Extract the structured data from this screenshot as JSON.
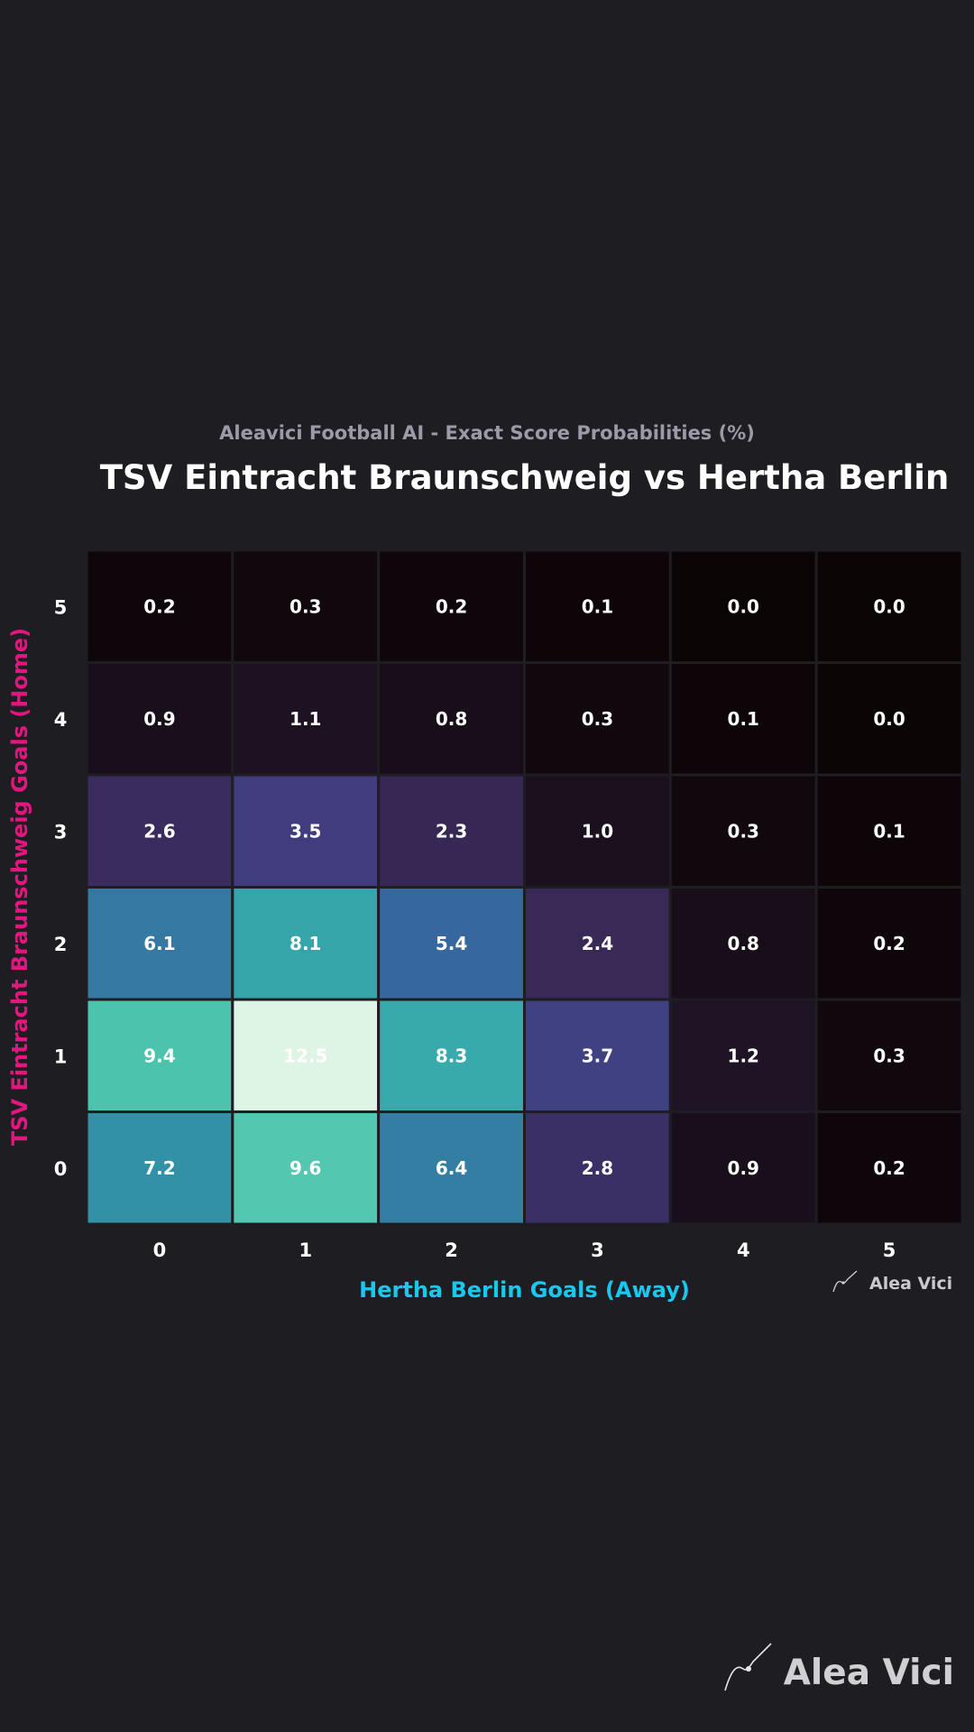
{
  "header": {
    "subtitle": "Aleavici Football AI - Exact Score Probabilities (%)",
    "title": "TSV Eintracht Braunschweig vs Hertha Berlin"
  },
  "brand": {
    "small_label": "Alea Vici",
    "big_label": "Alea Vici",
    "logo_icon": "signature-swoosh-icon"
  },
  "colors": {
    "background": "#1e1d22",
    "title": "#ffffff",
    "subtitle": "#9d9aa8",
    "ylabel": "#e3157f",
    "xlabel": "#17c8ef"
  },
  "chart_data": {
    "type": "heatmap",
    "title": "TSV Eintracht Braunschweig vs Hertha Berlin",
    "subtitle": "Aleavici Football AI - Exact Score Probabilities (%)",
    "xlabel": "Hertha Berlin Goals (Away)",
    "ylabel": "TSV Eintracht Braunschweig Goals (Home)",
    "x_categories": [
      "0",
      "1",
      "2",
      "3",
      "4",
      "5"
    ],
    "y_categories": [
      "0",
      "1",
      "2",
      "3",
      "4",
      "5"
    ],
    "values": [
      [
        7.2,
        9.6,
        6.4,
        2.8,
        0.9,
        0.2
      ],
      [
        9.4,
        12.5,
        8.3,
        3.7,
        1.2,
        0.3
      ],
      [
        6.1,
        8.1,
        5.4,
        2.4,
        0.8,
        0.2
      ],
      [
        2.6,
        3.5,
        2.3,
        1.0,
        0.3,
        0.1
      ],
      [
        0.9,
        1.1,
        0.8,
        0.3,
        0.1,
        0.0
      ],
      [
        0.2,
        0.3,
        0.2,
        0.1,
        0.0,
        0.0
      ]
    ],
    "colormap": "mako",
    "grid": false
  }
}
